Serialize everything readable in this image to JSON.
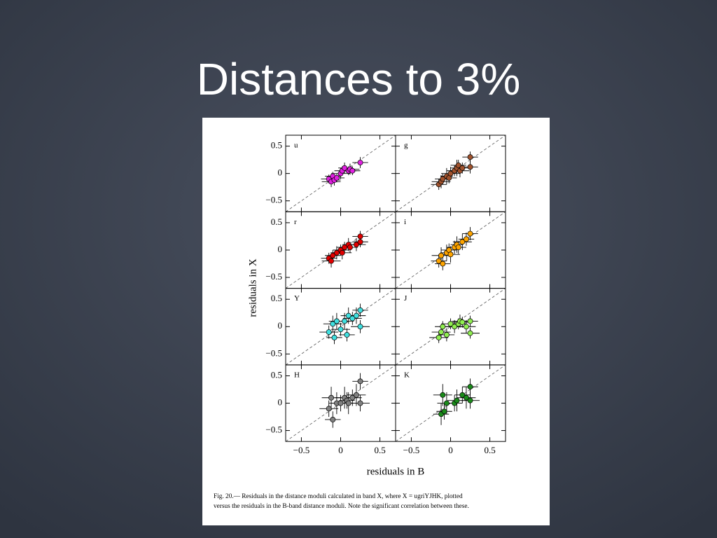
{
  "slide_title": "Distances to 3%",
  "x_axis_label": "residuals in B",
  "y_axis_label": "residuals in X",
  "caption": [
    "Fig. 20.— Residuals in the distance moduli calculated in band X, where X = ugriYJHK, plotted",
    "versus the residuals in the B-band distance moduli. Note the significant correlation between these."
  ],
  "chart_data": [
    {
      "type": "scatter",
      "title": "u",
      "color": "#e020e0",
      "x": [
        -0.15,
        -0.12,
        -0.1,
        -0.08,
        -0.05,
        0,
        0.02,
        0.05,
        0.1,
        0.12,
        0.15,
        0.25
      ],
      "y": [
        -0.1,
        -0.15,
        -0.05,
        -0.12,
        -0.08,
        0,
        0.05,
        0.1,
        0.05,
        0.08,
        0.05,
        0.2
      ],
      "xerr": [
        0.1,
        0.12,
        0.1,
        0.08,
        0.1,
        0.12,
        0.1,
        0.08,
        0.1,
        0.12,
        0.1,
        0.1
      ],
      "yerr": [
        0.08,
        0.1,
        0.08,
        0.1,
        0.08,
        0.1,
        0.08,
        0.1,
        0.08,
        0.1,
        0.08,
        0.1
      ],
      "xlim": [
        -0.7,
        0.7
      ],
      "ylim": [
        -0.7,
        0.7
      ],
      "xticks": [
        {
          "value": -0.5,
          "label": "−0.5"
        },
        0,
        0.5
      ],
      "yticks": [
        {
          "value": -0.5,
          "label": "−0.5"
        },
        0,
        0.5
      ]
    },
    {
      "type": "scatter",
      "title": "g",
      "color": "#a0522d",
      "x": [
        -0.15,
        -0.12,
        -0.1,
        -0.05,
        -0.02,
        0,
        0.05,
        0.08,
        0.1,
        0.12,
        0.15,
        0.25,
        0.25
      ],
      "y": [
        -0.2,
        -0.15,
        -0.1,
        -0.05,
        -0.08,
        0,
        0.05,
        0.1,
        0.15,
        0.05,
        0.1,
        0.3,
        0.12
      ],
      "xerr": [
        0.1,
        0.12,
        0.1,
        0.08,
        0.1,
        0.12,
        0.1,
        0.08,
        0.1,
        0.12,
        0.1,
        0.1,
        0.1
      ],
      "yerr": [
        0.1,
        0.12,
        0.1,
        0.15,
        0.1,
        0.12,
        0.1,
        0.15,
        0.1,
        0.12,
        0.1,
        0.1,
        0.12
      ],
      "xlim": [
        -0.7,
        0.7
      ],
      "ylim": [
        -0.7,
        0.7
      ],
      "xticks": [
        {
          "value": -0.5,
          "label": "−0.5"
        },
        0,
        0.5
      ],
      "yticks": [
        {
          "value": -0.5,
          "label": "−0.5"
        },
        0,
        0.5
      ]
    },
    {
      "type": "scatter",
      "title": "r",
      "color": "#e00000",
      "x": [
        -0.15,
        -0.12,
        -0.1,
        -0.05,
        0,
        0.02,
        0.05,
        0.1,
        0.12,
        0.2,
        0.25,
        0.25
      ],
      "y": [
        -0.15,
        -0.2,
        -0.1,
        -0.05,
        0,
        -0.05,
        0.05,
        0.1,
        0.05,
        0.1,
        0.25,
        0.15
      ],
      "xerr": [
        0.1,
        0.12,
        0.1,
        0.08,
        0.1,
        0.12,
        0.1,
        0.08,
        0.1,
        0.12,
        0.1,
        0.1
      ],
      "yerr": [
        0.1,
        0.12,
        0.1,
        0.12,
        0.1,
        0.12,
        0.1,
        0.12,
        0.1,
        0.12,
        0.1,
        0.1
      ],
      "xlim": [
        -0.7,
        0.7
      ],
      "ylim": [
        -0.7,
        0.7
      ],
      "xticks": [
        {
          "value": -0.5,
          "label": "−0.5"
        },
        0,
        0.5
      ],
      "yticks": [
        {
          "value": -0.5,
          "label": "−0.5"
        },
        0,
        0.5
      ]
    },
    {
      "type": "scatter",
      "title": "i",
      "color": "#ffa500",
      "x": [
        -0.15,
        -0.12,
        -0.1,
        -0.05,
        -0.02,
        0,
        0.05,
        0.08,
        0.1,
        0.15,
        0.2,
        0.25
      ],
      "y": [
        -0.2,
        -0.1,
        -0.25,
        -0.05,
        0,
        -0.08,
        0.05,
        0.1,
        0.05,
        0.15,
        0.2,
        0.3
      ],
      "xerr": [
        0.1,
        0.12,
        0.1,
        0.08,
        0.1,
        0.12,
        0.1,
        0.08,
        0.1,
        0.12,
        0.1,
        0.1
      ],
      "yerr": [
        0.12,
        0.15,
        0.12,
        0.15,
        0.12,
        0.15,
        0.12,
        0.15,
        0.12,
        0.15,
        0.12,
        0.12
      ],
      "xlim": [
        -0.7,
        0.7
      ],
      "ylim": [
        -0.7,
        0.7
      ],
      "xticks": [
        {
          "value": -0.5,
          "label": "−0.5"
        },
        0,
        0.5
      ],
      "yticks": [
        {
          "value": -0.5,
          "label": "−0.5"
        },
        0,
        0.5
      ]
    },
    {
      "type": "scatter",
      "title": "Y",
      "color": "#40e0e0",
      "x": [
        -0.15,
        -0.1,
        -0.08,
        -0.05,
        0,
        0.05,
        0.08,
        0.1,
        0.15,
        0.2,
        0.25,
        0.25
      ],
      "y": [
        -0.1,
        0.05,
        -0.2,
        0.1,
        -0.05,
        0.1,
        -0.15,
        0.2,
        0.15,
        0.2,
        0.3,
        0
      ],
      "xerr": [
        0.12,
        0.12,
        0.1,
        0.1,
        0.12,
        0.12,
        0.1,
        0.1,
        0.12,
        0.12,
        0.1,
        0.12
      ],
      "yerr": [
        0.12,
        0.15,
        0.12,
        0.15,
        0.12,
        0.15,
        0.12,
        0.15,
        0.12,
        0.15,
        0.12,
        0.12
      ],
      "xlim": [
        -0.7,
        0.7
      ],
      "ylim": [
        -0.7,
        0.7
      ],
      "xticks": [
        {
          "value": -0.5,
          "label": "−0.5"
        },
        0,
        0.5
      ],
      "yticks": [
        {
          "value": -0.5,
          "label": "−0.5"
        },
        0,
        0.5
      ]
    },
    {
      "type": "scatter",
      "title": "J",
      "color": "#90ee50",
      "x": [
        -0.15,
        -0.12,
        -0.1,
        -0.05,
        0,
        0.05,
        0.1,
        0.12,
        0.15,
        0.2,
        0.25,
        0.25
      ],
      "y": [
        -0.2,
        -0.1,
        0,
        -0.15,
        0.05,
        0,
        0.05,
        0.1,
        0.08,
        0,
        0.1,
        -0.12
      ],
      "xerr": [
        0.12,
        0.12,
        0.1,
        0.1,
        0.12,
        0.12,
        0.1,
        0.1,
        0.12,
        0.12,
        0.1,
        0.12
      ],
      "yerr": [
        0.1,
        0.12,
        0.1,
        0.12,
        0.1,
        0.12,
        0.1,
        0.12,
        0.1,
        0.12,
        0.1,
        0.1
      ],
      "xlim": [
        -0.7,
        0.7
      ],
      "ylim": [
        -0.7,
        0.7
      ],
      "xticks": [
        {
          "value": -0.5,
          "label": "−0.5"
        },
        0,
        0.5
      ],
      "yticks": [
        {
          "value": -0.5,
          "label": "−0.5"
        },
        0,
        0.5
      ]
    },
    {
      "type": "scatter",
      "title": "H",
      "color": "#808080",
      "x": [
        -0.15,
        -0.12,
        -0.1,
        -0.05,
        0,
        0.05,
        0.08,
        0.1,
        0.15,
        0.2,
        0.25,
        0.25
      ],
      "y": [
        -0.1,
        0.1,
        -0.3,
        0,
        0,
        0.1,
        0.05,
        0,
        0.1,
        0.15,
        0.4,
        0
      ],
      "xerr": [
        0.12,
        0.12,
        0.1,
        0.1,
        0.12,
        0.12,
        0.1,
        0.1,
        0.12,
        0.12,
        0.1,
        0.12
      ],
      "yerr": [
        0.15,
        0.2,
        0.15,
        0.2,
        0.15,
        0.2,
        0.15,
        0.2,
        0.15,
        0.2,
        0.15,
        0.15
      ],
      "xlim": [
        -0.7,
        0.7
      ],
      "ylim": [
        -0.7,
        0.7
      ],
      "xticks": [
        {
          "value": -0.5,
          "label": "−0.5"
        },
        0,
        0.5
      ],
      "yticks": [
        {
          "value": -0.5,
          "label": "−0.5"
        },
        0,
        0.5
      ]
    },
    {
      "type": "scatter",
      "title": "K",
      "color": "#1a8a1a",
      "x": [
        -0.12,
        -0.1,
        -0.08,
        -0.05,
        0.05,
        0.08,
        0.15,
        0.2,
        0.25,
        0.25
      ],
      "y": [
        -0.2,
        0.15,
        -0.15,
        0,
        0,
        0.05,
        0.15,
        0.1,
        0.3,
        0.05
      ],
      "xerr": [
        0.1,
        0.12,
        0.1,
        0.12,
        0.1,
        0.12,
        0.1,
        0.12,
        0.1,
        0.12
      ],
      "yerr": [
        0.2,
        0.2,
        0.15,
        0.2,
        0.15,
        0.2,
        0.15,
        0.2,
        0.15,
        0.15
      ],
      "xlim": [
        -0.7,
        0.7
      ],
      "ylim": [
        -0.7,
        0.7
      ],
      "xticks": [
        {
          "value": -0.5,
          "label": "−0.5"
        },
        0,
        0.5
      ],
      "yticks": [
        {
          "value": -0.5,
          "label": "−0.5"
        },
        0,
        0.5
      ]
    }
  ]
}
